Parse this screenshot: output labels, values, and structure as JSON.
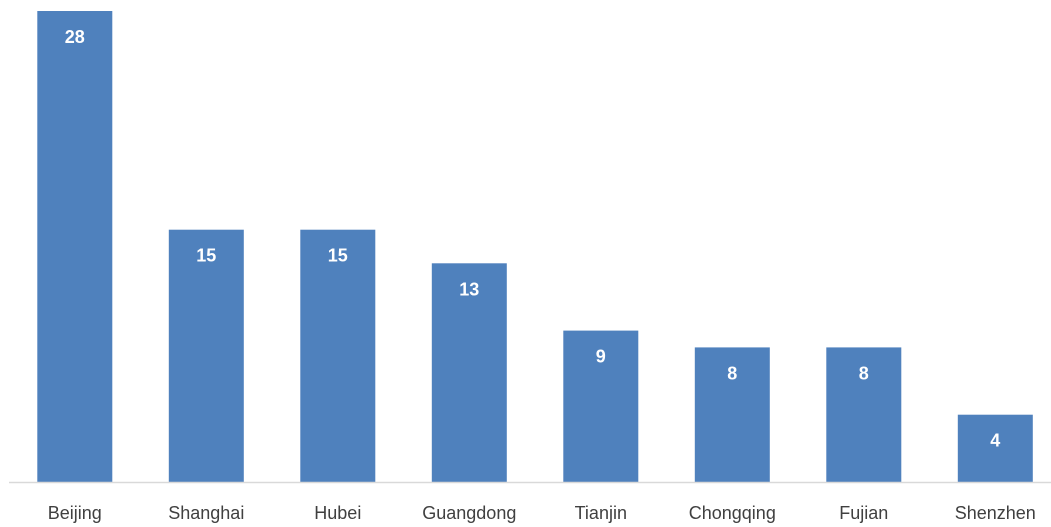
{
  "chart_data": {
    "type": "bar",
    "title": "",
    "xlabel": "",
    "ylabel": "",
    "categories": [
      "Beijing",
      "Shanghai",
      "Hubei",
      "Guangdong",
      "Tianjin",
      "Chongqing",
      "Fujian",
      "Shenzhen"
    ],
    "values": [
      28,
      15,
      15,
      13,
      9,
      8,
      8,
      4
    ],
    "ylim": [
      0,
      28
    ],
    "grid": false,
    "legend": "none",
    "data_labels": "inside-top",
    "colors": {
      "bar": "#4f81bd",
      "axis": "#d9d9d9",
      "category_text": "#404040",
      "value_text": "#ffffff"
    }
  }
}
